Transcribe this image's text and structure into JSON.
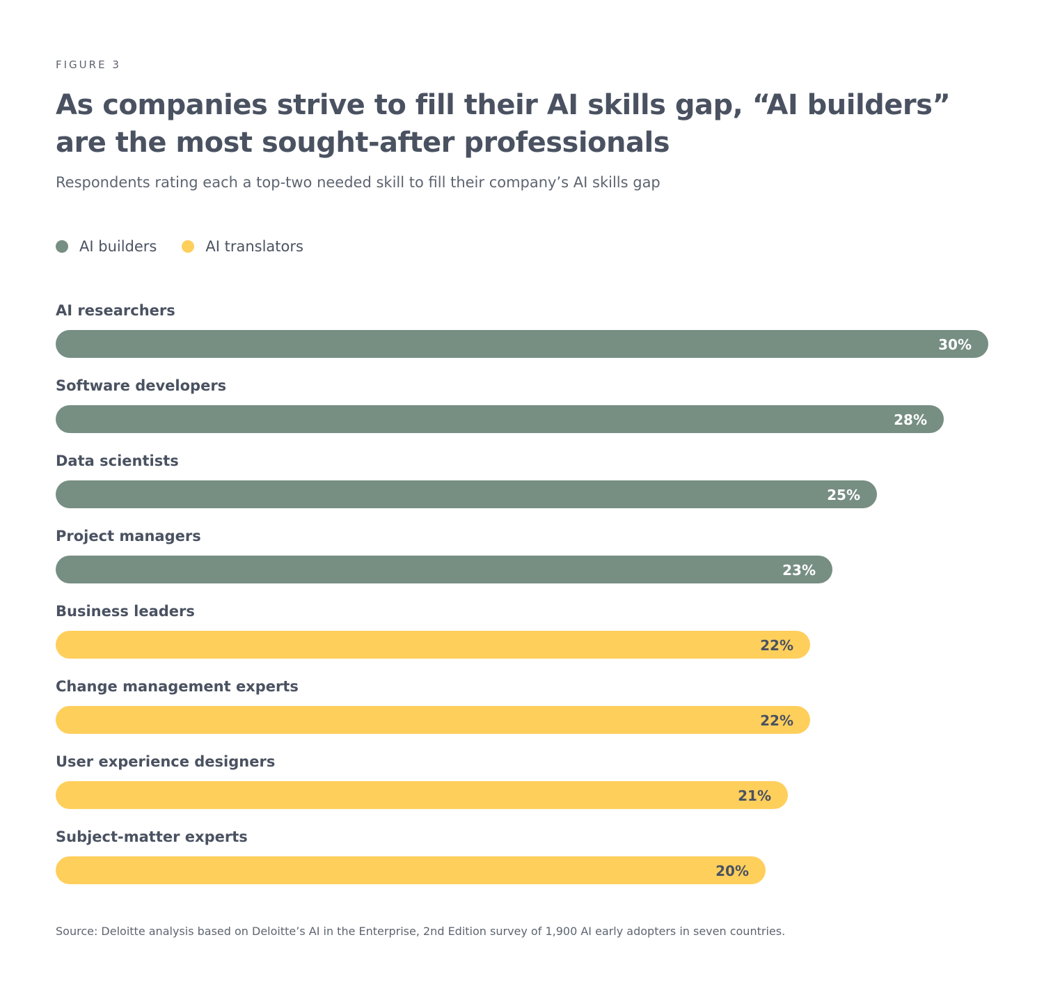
{
  "figure_label": "FIGURE 3",
  "colors": {
    "ai_builders": "#778e83",
    "ai_translators": "#ffcf5c",
    "text": "#4a5261"
  },
  "chart_data": {
    "type": "bar",
    "orientation": "horizontal",
    "title": "As companies strive to fill their AI skills gap, “AI builders” are the most sought-after professionals",
    "subtitle": "Respondents rating each a top-two needed skill to fill their company’s AI skills gap",
    "legend": [
      {
        "name": "AI builders",
        "color": "#778e83"
      },
      {
        "name": "AI translators",
        "color": "#ffcf5c"
      }
    ],
    "legend_placement": "top-left",
    "grid": false,
    "unit": "%",
    "categories": [
      "AI researchers",
      "Software developers",
      "Data scientists",
      "Project managers",
      "Business leaders",
      "Change management experts",
      "User experience designers",
      "Subject-matter experts"
    ],
    "values": [
      30,
      28,
      25,
      23,
      22,
      22,
      21,
      20
    ],
    "groups": [
      "AI builders",
      "AI builders",
      "AI builders",
      "AI builders",
      "AI translators",
      "AI translators",
      "AI translators",
      "AI translators"
    ],
    "value_labels": [
      "30%",
      "28%",
      "25%",
      "23%",
      "22%",
      "22%",
      "21%",
      "20%"
    ]
  },
  "source": "Source: Deloitte analysis based on Deloitte’s AI in the Enterprise, 2nd Edition survey of 1,900 AI early adopters in seven countries."
}
